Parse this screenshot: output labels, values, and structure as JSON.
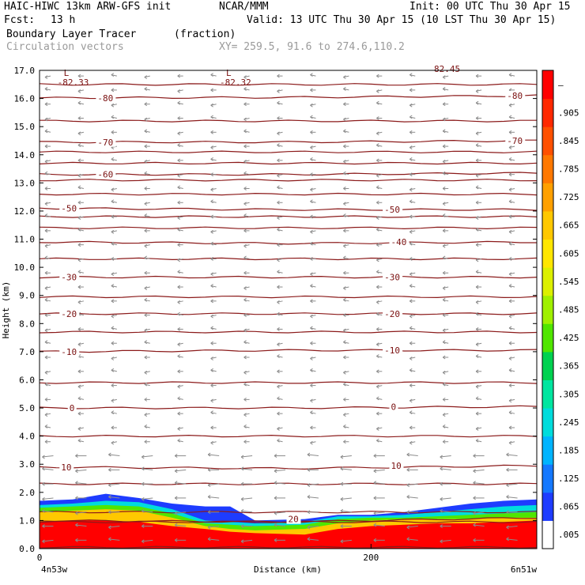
{
  "header": {
    "model": "HAIC-HIWC 13km ARW-GFS init",
    "org": "NCAR/MMM",
    "init": "Init: 00 UTC Thu 30 Apr 15",
    "fcst_label": "Fcst:",
    "fcst_value": "13 h",
    "valid": "Valid: 13 UTC Thu 30 Apr 15 (10 LST Thu 30 Apr 15)",
    "field": "Boundary Layer Tracer",
    "field_units": "(fraction)",
    "vectors": "Circulation vectors",
    "xy": "XY= 259.5, 91.6 to 274.6,110.2"
  },
  "colors": {
    "contour": "#8b1a1a",
    "vector": "#8c8c8c",
    "text_grey": "#9a9a9a"
  },
  "chart_data": {
    "type": "heatmap",
    "ylabel": "Height (km)",
    "xlabel": "Distance (km)",
    "xlim": [
      0,
      300
    ],
    "ylim": [
      0,
      17
    ],
    "x_ticks": [
      0,
      200
    ],
    "y_ticks": [
      "0.0",
      "1.0",
      "2.0",
      "3.0",
      "4.0",
      "5.0",
      "6.0",
      "7.0",
      "8.0",
      "9.0",
      "10.0",
      "11.0",
      "12.0",
      "13.0",
      "14.0",
      "15.0",
      "16.0",
      "17.0"
    ],
    "x_end_labels": {
      "left": "4n53w",
      "right": "6n51w"
    },
    "colorbar": {
      "labels": [
        ".005",
        ".065",
        ".125",
        ".185",
        ".245",
        ".305",
        ".365",
        ".425",
        ".485",
        ".545",
        ".605",
        ".665",
        ".725",
        ".785",
        ".845",
        ".905",
        "–"
      ],
      "colors": [
        "#ffffff",
        "#1e3cff",
        "#1478ff",
        "#00b4ff",
        "#00dcdc",
        "#00e6a0",
        "#00d250",
        "#50e600",
        "#a0f000",
        "#dcf000",
        "#ffe600",
        "#ffc800",
        "#ffa000",
        "#ff7800",
        "#ff5000",
        "#ff2800",
        "#ff0000"
      ]
    },
    "temperature_contours": [
      {
        "value": -80,
        "y": [
          16.02,
          16.04,
          16.1
        ]
      },
      {
        "value": -70,
        "y": [
          14.45,
          14.45,
          14.5
        ]
      },
      {
        "value": -60,
        "y": [
          13.3,
          13.3,
          13.35
        ]
      },
      {
        "value": -50,
        "y": [
          12.1,
          12.05,
          12.05
        ]
      },
      {
        "value": -40,
        "y": [
          10.9,
          10.85,
          10.9
        ]
      },
      {
        "value": -30,
        "y": [
          9.65,
          9.65,
          9.65
        ]
      },
      {
        "value": -20,
        "y": [
          8.35,
          8.35,
          8.35
        ]
      },
      {
        "value": -10,
        "y": [
          7.0,
          7.05,
          7.05
        ]
      },
      {
        "value": 0,
        "y": [
          5.0,
          5.0,
          5.05
        ]
      },
      {
        "value": 10,
        "y": [
          2.9,
          2.85,
          2.95
        ]
      },
      {
        "value": 20,
        "y": [
          1.0,
          0.95,
          1.1
        ]
      }
    ],
    "extra_levels": [
      0.05,
      0.95,
      1.3,
      2.3,
      4.0,
      5.9,
      7.7,
      8.95,
      10.3,
      11.4,
      11.8,
      12.6,
      13.1,
      13.7,
      14.1,
      15.2,
      16.5
    ],
    "contour_labels": [
      {
        "text": "-80",
        "x": 35,
        "y": 16.02
      },
      {
        "text": "-80",
        "x": 282,
        "y": 16.1
      },
      {
        "text": "-70",
        "x": 35,
        "y": 14.45
      },
      {
        "text": "-70",
        "x": 282,
        "y": 14.5
      },
      {
        "text": "-60",
        "x": 35,
        "y": 13.3
      },
      {
        "text": "-50",
        "x": 13,
        "y": 12.1
      },
      {
        "text": "-50",
        "x": 208,
        "y": 12.05
      },
      {
        "text": "-40",
        "x": 212,
        "y": 10.9
      },
      {
        "text": "-30",
        "x": 13,
        "y": 9.65
      },
      {
        "text": "-30",
        "x": 208,
        "y": 9.65
      },
      {
        "text": "-20",
        "x": 13,
        "y": 8.35
      },
      {
        "text": "-20",
        "x": 208,
        "y": 8.35
      },
      {
        "text": "-10",
        "x": 13,
        "y": 7.0
      },
      {
        "text": "-10",
        "x": 208,
        "y": 7.05
      },
      {
        "text": "0",
        "x": 18,
        "y": 5.0
      },
      {
        "text": "0",
        "x": 212,
        "y": 5.05
      },
      {
        "text": "10",
        "x": 13,
        "y": 2.9
      },
      {
        "text": "10",
        "x": 212,
        "y": 2.95
      },
      {
        "text": "20",
        "x": 150,
        "y": 1.05
      }
    ],
    "min_markers": [
      {
        "letter": "L",
        "value": "-82.33",
        "x": 6,
        "y": 16.8
      },
      {
        "letter": "L",
        "value": "-82.32",
        "x": 104,
        "y": 16.8
      }
    ],
    "partial_label": {
      "text": "82.45",
      "x": 238,
      "y": 17.05
    },
    "tracer_layers": [
      {
        "level": 1.0,
        "top": [
          0.95,
          1.0,
          1.0,
          0.95,
          0.8,
          0.7,
          0.6,
          0.55,
          0.5,
          0.7,
          0.8,
          0.85,
          0.9,
          0.9,
          0.95,
          1.0
        ]
      },
      {
        "level": 0.7,
        "top": [
          1.3,
          1.35,
          1.4,
          1.35,
          1.1,
          0.8,
          0.7,
          0.65,
          0.7,
          0.9,
          1.0,
          1.05,
          1.05,
          1.05,
          1.1,
          1.1
        ]
      },
      {
        "level": 0.45,
        "top": [
          1.45,
          1.5,
          1.55,
          1.5,
          1.25,
          0.9,
          0.85,
          0.8,
          0.85,
          1.05,
          1.1,
          1.1,
          1.15,
          1.2,
          1.25,
          1.3
        ]
      },
      {
        "level": 0.25,
        "top": [
          1.55,
          1.6,
          1.7,
          1.65,
          1.4,
          1.0,
          0.95,
          0.9,
          0.95,
          1.15,
          1.15,
          1.2,
          1.3,
          1.4,
          1.5,
          1.55
        ]
      },
      {
        "level": 0.065,
        "top": [
          1.7,
          1.75,
          1.95,
          1.8,
          1.6,
          1.5,
          1.5,
          1.0,
          1.05,
          1.2,
          1.2,
          1.3,
          1.45,
          1.6,
          1.7,
          1.75
        ]
      }
    ],
    "tracer_x": [
      0,
      20,
      40,
      60,
      80,
      100,
      115,
      130,
      160,
      180,
      200,
      220,
      240,
      260,
      280,
      300
    ]
  }
}
